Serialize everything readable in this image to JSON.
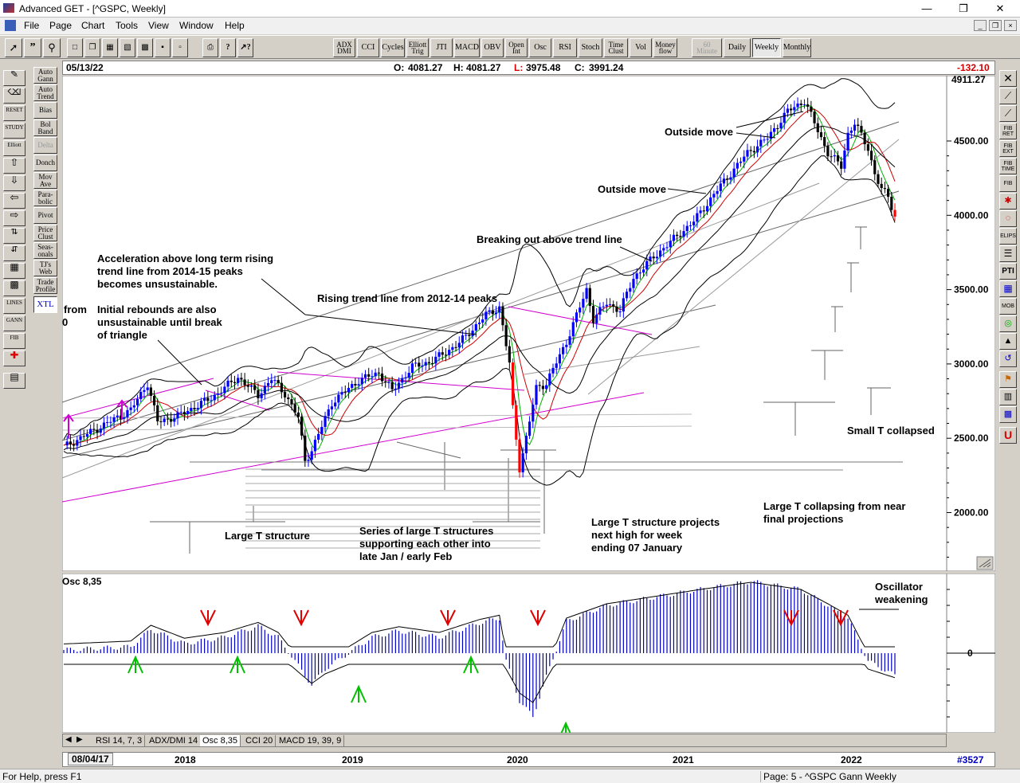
{
  "window": {
    "title": "Advanced GET - [^GSPC, Weekly]"
  },
  "menu": [
    "File",
    "Page",
    "Chart",
    "Tools",
    "View",
    "Window",
    "Help"
  ],
  "toolbar": {
    "indicators": [
      "ADX DMI",
      "CCI",
      "Cycles",
      "Elliott Trig",
      "JTI",
      "MACD",
      "OBV",
      "Open Int",
      "Osc",
      "RSI",
      "Stoch",
      "Time Clust",
      "Vol",
      "Money flow"
    ],
    "periods": [
      "60 Minute",
      "Daily",
      "Weekly",
      "Monthly"
    ],
    "active_period": "Weekly"
  },
  "left_study_buttons": [
    "Auto Gann",
    "Auto Trend",
    "Bias",
    "Bol Band",
    "Delta",
    "Donch",
    "Mov Ave",
    "Para- bolic",
    "Pivot",
    "Price Clust",
    "Seas- onals",
    "TJ's Web",
    "Trade Profile",
    "XTL"
  ],
  "left_tool_labels": [
    "RESET",
    "STUDY",
    "Elliott",
    "LINES",
    "GANN",
    "FIB"
  ],
  "right_tool_labels": [
    "FIB RET",
    "FIB EXT",
    "FIB TIME",
    "FIB",
    "ELIPS",
    "PTI",
    "MOB"
  ],
  "infobar": {
    "date": "05/13/22",
    "open_label": "O:",
    "open": "4081.27",
    "high_label": "H:",
    "high": "4081.27",
    "low_label": "L:",
    "low": "3975.48",
    "close_label": "C:",
    "close": "3991.24",
    "change": "-132.10"
  },
  "price_axis": {
    "top_label": "4911.27",
    "labels": [
      "4500.00",
      "4000.00",
      "3500.00",
      "3000.00",
      "2500.00",
      "2000.00"
    ]
  },
  "annotations": {
    "outside_move_1": "Outside move",
    "outside_move_2": "Outside move",
    "breaking_out": "Breaking out above trend line",
    "accel_1": "Acceleration above long term rising",
    "accel_2": "trend line from 2014-15 peaks",
    "accel_3": "becomes unsustainable.",
    "initial_1": "Initial rebounds are also",
    "initial_2": "unsustainable until break",
    "initial_3": "of triangle",
    "rising_trend": "Rising trend line from 2012-14 peaks",
    "from_cut": "from",
    "zero_cut": "0",
    "large_t": "Large T structure",
    "series_1": "Series of large T structures",
    "series_2": "supporting each other into",
    "series_3": "late Jan / early Feb",
    "project_1": "Large T structure projects",
    "project_2": "next high for week",
    "project_3": "ending 07 January",
    "collapsing_1": "Large T collapsing from near",
    "collapsing_2": "final projections",
    "small_t": "Small T collapsed",
    "osc_weak_1": "Oscillator",
    "osc_weak_2": "weakening"
  },
  "oscillator": {
    "label": "Osc 8,35",
    "zero_label": "0"
  },
  "tabs": [
    "RSI 14, 7, 3",
    "ADX/DMI 14",
    "Osc 8,35",
    "CCI 20",
    "MACD 19, 39, 9"
  ],
  "active_tab": "Osc 8,35",
  "time_axis": {
    "start_date": "08/04/17",
    "years": [
      "2018",
      "2019",
      "2020",
      "2021",
      "2022"
    ],
    "bar_count": "#3527"
  },
  "status": {
    "help": "For Help, press F1",
    "page": "Page: 5 - ^GSPC Gann Weekly"
  },
  "colors": {
    "up_bar": "#0000ff",
    "down_bar": "#000000",
    "last_bar": "#ff0000",
    "ma_fast": "#00b000",
    "ma_slow": "#d00000",
    "trend_magenta": "#d000d0",
    "arrow_down": "#e00000",
    "arrow_up": "#00c000"
  }
}
